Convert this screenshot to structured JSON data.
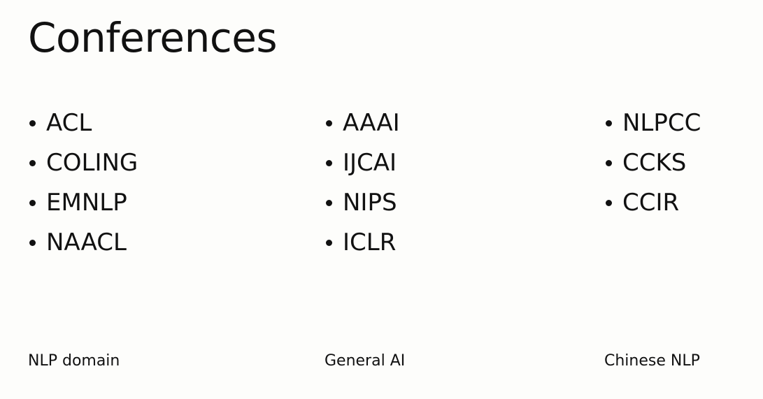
{
  "title": "Conferences",
  "columns": [
    {
      "items": [
        "ACL",
        "COLING",
        "EMNLP",
        "NAACL"
      ],
      "caption": "NLP domain"
    },
    {
      "items": [
        "AAAI",
        "IJCAI",
        "NIPS",
        "ICLR"
      ],
      "caption": "General AI"
    },
    {
      "items": [
        "NLPCC",
        "CCKS",
        "CCIR"
      ],
      "caption": "Chinese NLP"
    }
  ]
}
